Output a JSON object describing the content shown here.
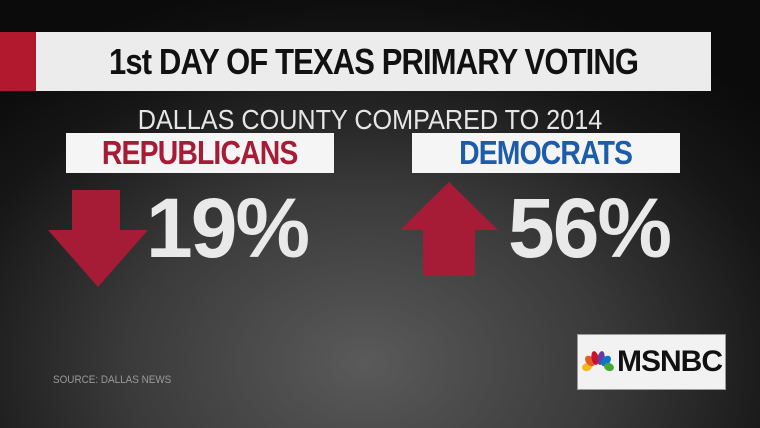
{
  "title": "1st DAY OF TEXAS PRIMARY VOTING",
  "subtitle": "DALLAS COUNTY COMPARED TO 2014",
  "republicans": {
    "label": "REPUBLICANS",
    "change": "19%",
    "direction": "down",
    "color": "#a61b35"
  },
  "democrats": {
    "label": "DEMOCRATS",
    "change": "56%",
    "direction": "up",
    "color": "#1c5ca8"
  },
  "source": "SOURCE: DALLAS NEWS",
  "logo": {
    "text": "MSNBC"
  }
}
